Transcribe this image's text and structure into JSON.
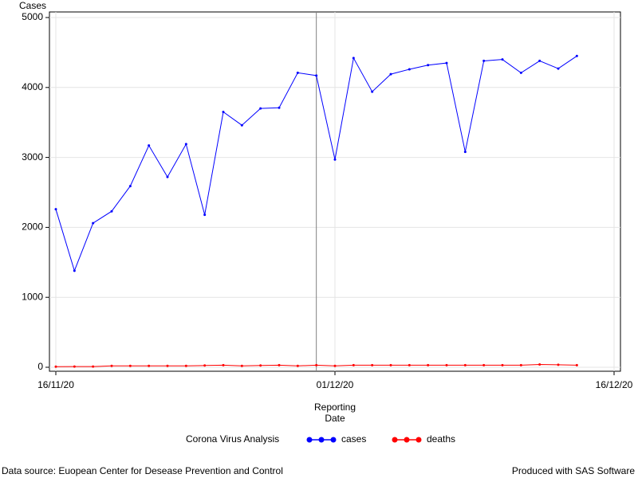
{
  "chart_data": {
    "type": "line",
    "y_label": "Cases",
    "x_label": "Reporting Date",
    "legend_title": "Corona Virus Analysis",
    "legend_position": "bottom",
    "x": [
      "16/11/20",
      "17/11/20",
      "18/11/20",
      "19/11/20",
      "20/11/20",
      "21/11/20",
      "22/11/20",
      "23/11/20",
      "24/11/20",
      "25/11/20",
      "26/11/20",
      "27/11/20",
      "28/11/20",
      "29/11/20",
      "30/11/20",
      "01/12/20",
      "02/12/20",
      "03/12/20",
      "04/12/20",
      "05/12/20",
      "06/12/20",
      "07/12/20",
      "08/12/20",
      "09/12/20",
      "10/12/20",
      "11/12/20",
      "12/12/20",
      "13/12/20",
      "14/12/20"
    ],
    "series": [
      {
        "name": "cases",
        "color": "#0000ff",
        "values": [
          2260,
          1380,
          2060,
          2230,
          2590,
          3170,
          2720,
          3190,
          2180,
          3650,
          3460,
          3700,
          3710,
          4210,
          4170,
          2970,
          4420,
          3940,
          4190,
          4260,
          4320,
          4350,
          3080,
          4380,
          4400,
          4210,
          4380,
          4270,
          4450
        ]
      },
      {
        "name": "deaths",
        "color": "#ff0000",
        "values": [
          8,
          10,
          10,
          20,
          20,
          20,
          20,
          20,
          25,
          30,
          20,
          25,
          30,
          20,
          30,
          20,
          30,
          30,
          30,
          30,
          30,
          30,
          30,
          30,
          30,
          30,
          40,
          35,
          30
        ]
      }
    ],
    "xlim": [
      "16/11/20",
      "16/12/20"
    ],
    "xticks": [
      "16/11/20",
      "01/12/20",
      "16/12/20"
    ],
    "ylim": [
      0,
      5000
    ],
    "yticks": [
      0,
      1000,
      2000,
      3000,
      4000,
      5000
    ],
    "grid": true,
    "reference_line": "30/11/20",
    "footnote_left": "Data source: Euopean Center for Desease Prevention and Control",
    "footnote_right": "Produced with SAS Software"
  }
}
